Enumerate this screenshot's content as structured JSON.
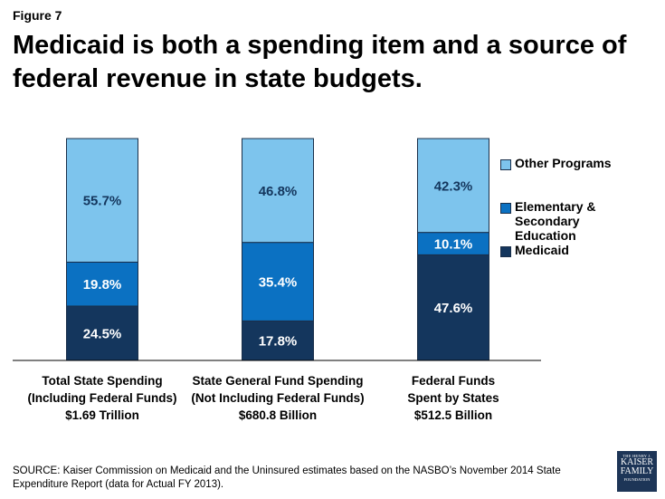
{
  "figure_label": "Figure 7",
  "title": "Medicaid is both a spending item and a source of federal revenue in state budgets.",
  "colors": {
    "other_programs": "#7dc4ed",
    "education": "#0b71c2",
    "medicaid": "#14365d",
    "border": "#1a2f4a",
    "label_dark": "#14365d",
    "label_light": "#ffffff"
  },
  "chart_data": {
    "type": "bar",
    "stacked": true,
    "percent_stacked": true,
    "ylim": [
      0,
      100
    ],
    "categories": [
      [
        "Total State Spending",
        "(Including Federal Funds)",
        "$1.69 Trillion"
      ],
      [
        "State General Fund Spending",
        "(Not Including Federal Funds)",
        "$680.8 Billion"
      ],
      [
        "Federal Funds",
        "Spent by States",
        "$512.5 Billion"
      ]
    ],
    "series": [
      {
        "name": "Medicaid",
        "values": [
          24.5,
          17.8,
          47.6
        ],
        "labels": [
          "24.5%",
          "17.8%",
          "47.6%"
        ]
      },
      {
        "name": "Elementary & Secondary Education",
        "values": [
          19.8,
          35.4,
          10.1
        ],
        "labels": [
          "19.8%",
          "35.4%",
          "10.1%"
        ]
      },
      {
        "name": "Other Programs",
        "values": [
          55.7,
          46.8,
          42.3
        ],
        "labels": [
          "55.7%",
          "46.8%",
          "42.3%"
        ]
      }
    ],
    "legend": {
      "position": "right",
      "entries": [
        [
          "Other Programs"
        ],
        [
          "Elementary & Secondary",
          "Education"
        ],
        [
          "Medicaid"
        ]
      ]
    }
  },
  "source": "SOURCE: Kaiser Commission on Medicaid and the Uninsured estimates based on the NASBO’s November 2014 State Expenditure Report (data for Actual FY 2013).",
  "logo": {
    "line1": "THE HENRY J.",
    "line2": "KAISER",
    "line3": "FAMILY",
    "line4": "FOUNDATION"
  }
}
